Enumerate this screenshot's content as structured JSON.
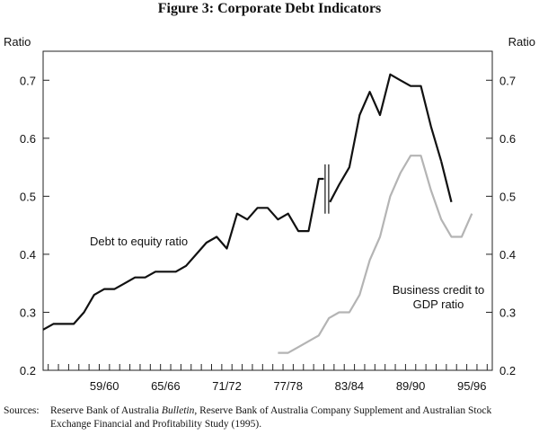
{
  "figure": {
    "title": "Figure 3: Corporate Debt Indicators"
  },
  "sources": {
    "prefix": "Sources:",
    "part1": "Reserve Bank of Australia ",
    "italic": "Bulletin",
    "part2": ", Reserve Bank of Australia Company Supplement and Australian Stock Exchange Financial and Profitability Study (1995)."
  },
  "chart_data": {
    "type": "line",
    "title": "Figure 3: Corporate Debt Indicators",
    "ylabel_left": "Ratio",
    "ylabel_right": "Ratio",
    "ylim": [
      0.2,
      0.75
    ],
    "yticks": [
      0.2,
      0.3,
      0.4,
      0.5,
      0.6,
      0.7
    ],
    "ytick_labels": [
      "0.2",
      "0.3",
      "0.4",
      "0.5",
      "0.6",
      "0.7"
    ],
    "xlim": [
      1953.5,
      1997.5
    ],
    "xtick_labels": [
      "59/60",
      "65/66",
      "71/72",
      "77/78",
      "83/84",
      "89/90",
      "95/96"
    ],
    "xtick_positions": [
      1959.5,
      1965.5,
      1971.5,
      1977.5,
      1983.5,
      1989.5,
      1995.5
    ],
    "grid": false,
    "break_marker_x": 1981.3,
    "series": [
      {
        "name": "Debt to equity ratio",
        "label": "Debt to equity ratio",
        "color": "#111111",
        "segments": [
          {
            "x": [
              1953.5,
              1954.5,
              1955.5,
              1956.5,
              1957.5,
              1958.5,
              1959.5,
              1960.5,
              1961.5,
              1962.5,
              1963.5,
              1964.5,
              1965.5,
              1966.5,
              1967.5,
              1968.5,
              1969.5,
              1970.5,
              1971.5,
              1972.5,
              1973.5,
              1974.5,
              1975.5,
              1976.5,
              1977.5,
              1978.5,
              1979.5,
              1980.5,
              1981.0
            ],
            "y": [
              0.27,
              0.28,
              0.28,
              0.28,
              0.3,
              0.33,
              0.34,
              0.34,
              0.35,
              0.36,
              0.36,
              0.37,
              0.37,
              0.37,
              0.38,
              0.4,
              0.42,
              0.43,
              0.41,
              0.47,
              0.46,
              0.48,
              0.48,
              0.46,
              0.47,
              0.44,
              0.44,
              0.53,
              0.53
            ]
          },
          {
            "x": [
              1981.6,
              1982.5,
              1983.5,
              1984.5,
              1985.5,
              1986.5,
              1987.5,
              1988.5,
              1989.5,
              1990.5,
              1991.5,
              1992.5
            ],
            "y": [
              0.49,
              0.52,
              0.55,
              0.64,
              0.68,
              0.64,
              0.71,
              0.7,
              0.69,
              0.69,
              0.62,
              0.56
            ]
          },
          {
            "x": [
              1992.5,
              1993.5
            ],
            "y": [
              0.56,
              0.49
            ]
          }
        ]
      },
      {
        "name": "Business credit to GDP ratio",
        "label_line1": "Business credit to",
        "label_line2": "GDP ratio",
        "color": "#b4b4b4",
        "segments": [
          {
            "x": [
              1976.5,
              1977.5,
              1978.5,
              1979.5,
              1980.5,
              1981.5,
              1982.5,
              1983.5,
              1984.5,
              1985.5,
              1986.5,
              1987.5,
              1988.5,
              1989.5,
              1990.5,
              1991.5,
              1992.5,
              1993.5,
              1994.5,
              1995.5
            ],
            "y": [
              0.23,
              0.23,
              0.24,
              0.25,
              0.26,
              0.29,
              0.3,
              0.3,
              0.33,
              0.39,
              0.43,
              0.5,
              0.54,
              0.57,
              0.57,
              0.51,
              0.46,
              0.43,
              0.43,
              0.47
            ]
          }
        ]
      }
    ]
  }
}
